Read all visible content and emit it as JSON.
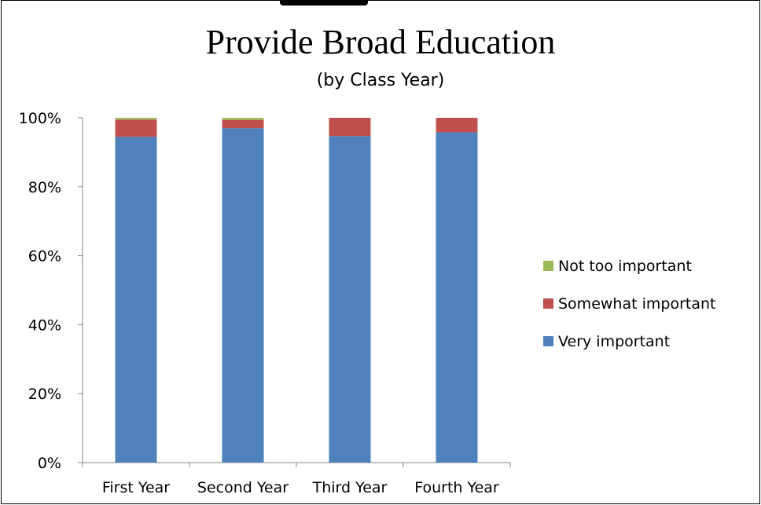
{
  "chart_data": {
    "type": "bar",
    "stacked": true,
    "title": "Provide Broad Education",
    "subtitle": "(by Class Year)",
    "categories": [
      "First Year",
      "Second Year",
      "Third Year",
      "Fourth Year"
    ],
    "series": [
      {
        "name": "Very important",
        "color": "#4F81BD",
        "values": [
          94.5,
          97.0,
          94.7,
          95.8
        ]
      },
      {
        "name": "Somewhat important",
        "color": "#C0504D",
        "values": [
          5.0,
          2.4,
          5.3,
          4.2
        ]
      },
      {
        "name": "Not too important",
        "color": "#9BBB59",
        "values": [
          0.5,
          0.6,
          0.0,
          0.0
        ]
      }
    ],
    "ylim": [
      0,
      100
    ],
    "yticks": [
      "0%",
      "20%",
      "40%",
      "60%",
      "80%",
      "100%"
    ],
    "grid": false,
    "legend_position": "right",
    "legend_order": [
      "Not too important",
      "Somewhat important",
      "Very important"
    ]
  }
}
